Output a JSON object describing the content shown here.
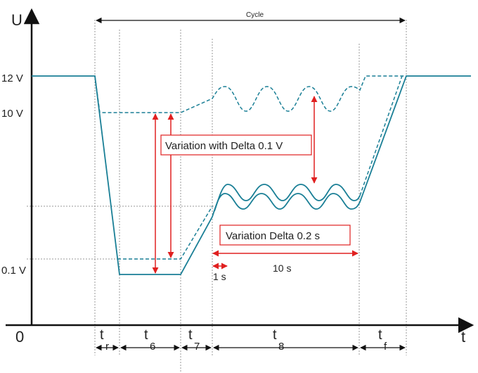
{
  "labels": {
    "u_axis": "U",
    "t_axis": "t",
    "origin": "0",
    "cycle": "Cycle",
    "v12": "12 V",
    "v10": "10 V",
    "v01": "0.1 V",
    "variation_voltage": "Variation with Delta 0.1 V",
    "variation_time": "Variation Delta 0.2 s",
    "one_s": "1 s",
    "ten_s": "10 s",
    "t_r": "t",
    "t_r_sub": "r",
    "t_6": "t",
    "t_6_sub": "6",
    "t_7": "t",
    "t_7_sub": "7",
    "t_8": "t",
    "t_8_sub": "8",
    "t_f": "t",
    "t_f_sub": "f"
  },
  "colors": {
    "waveform": "#1a7f96",
    "annotation": "#e02020",
    "axis": "#111111",
    "guide": "#999999"
  }
}
